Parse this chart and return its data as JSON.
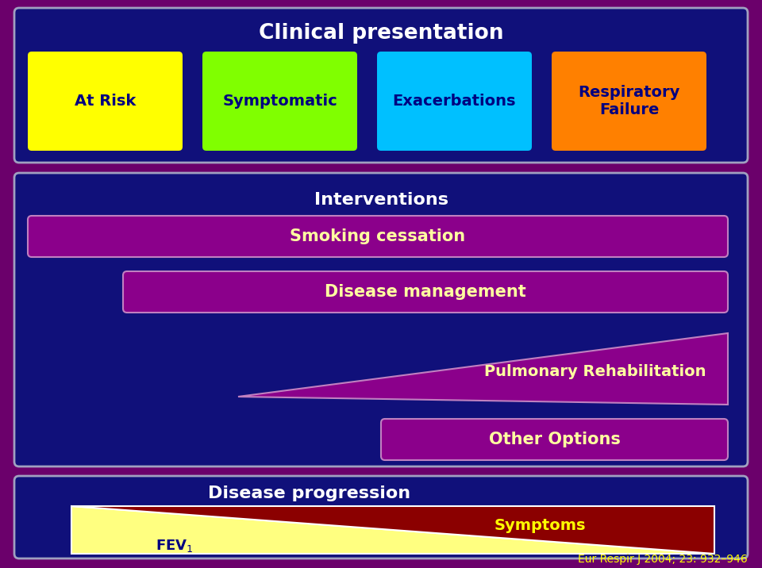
{
  "bg_outer": "#6B006B",
  "bg_dark_navy": "#10107A",
  "title_clinical": "Clinical presentation",
  "title_interventions": "Interventions",
  "title_disease_prog": "Disease progression",
  "boxes_top": [
    {
      "label": "At Risk",
      "color": "#FFFF00"
    },
    {
      "label": "Symptomatic",
      "color": "#80FF00"
    },
    {
      "label": "Exacerbations",
      "color": "#00C0FF"
    },
    {
      "label": "Respiratory\nFailure",
      "color": "#FF8000"
    }
  ],
  "bar_color": "#8B008B",
  "bar_border_color": "#C080C0",
  "bar_text_color": "#FFFFA0",
  "title_text_color": "#FFFFFF",
  "box_label_color": "#000080",
  "pulm_rehab_label": "Pulmonary Rehabilitation",
  "symptoms_color": "#8B0000",
  "fev_color": "#FFFF80",
  "citation": "Eur Respir J 2004; 23: 932–946",
  "citation_color": "#FFFF00"
}
